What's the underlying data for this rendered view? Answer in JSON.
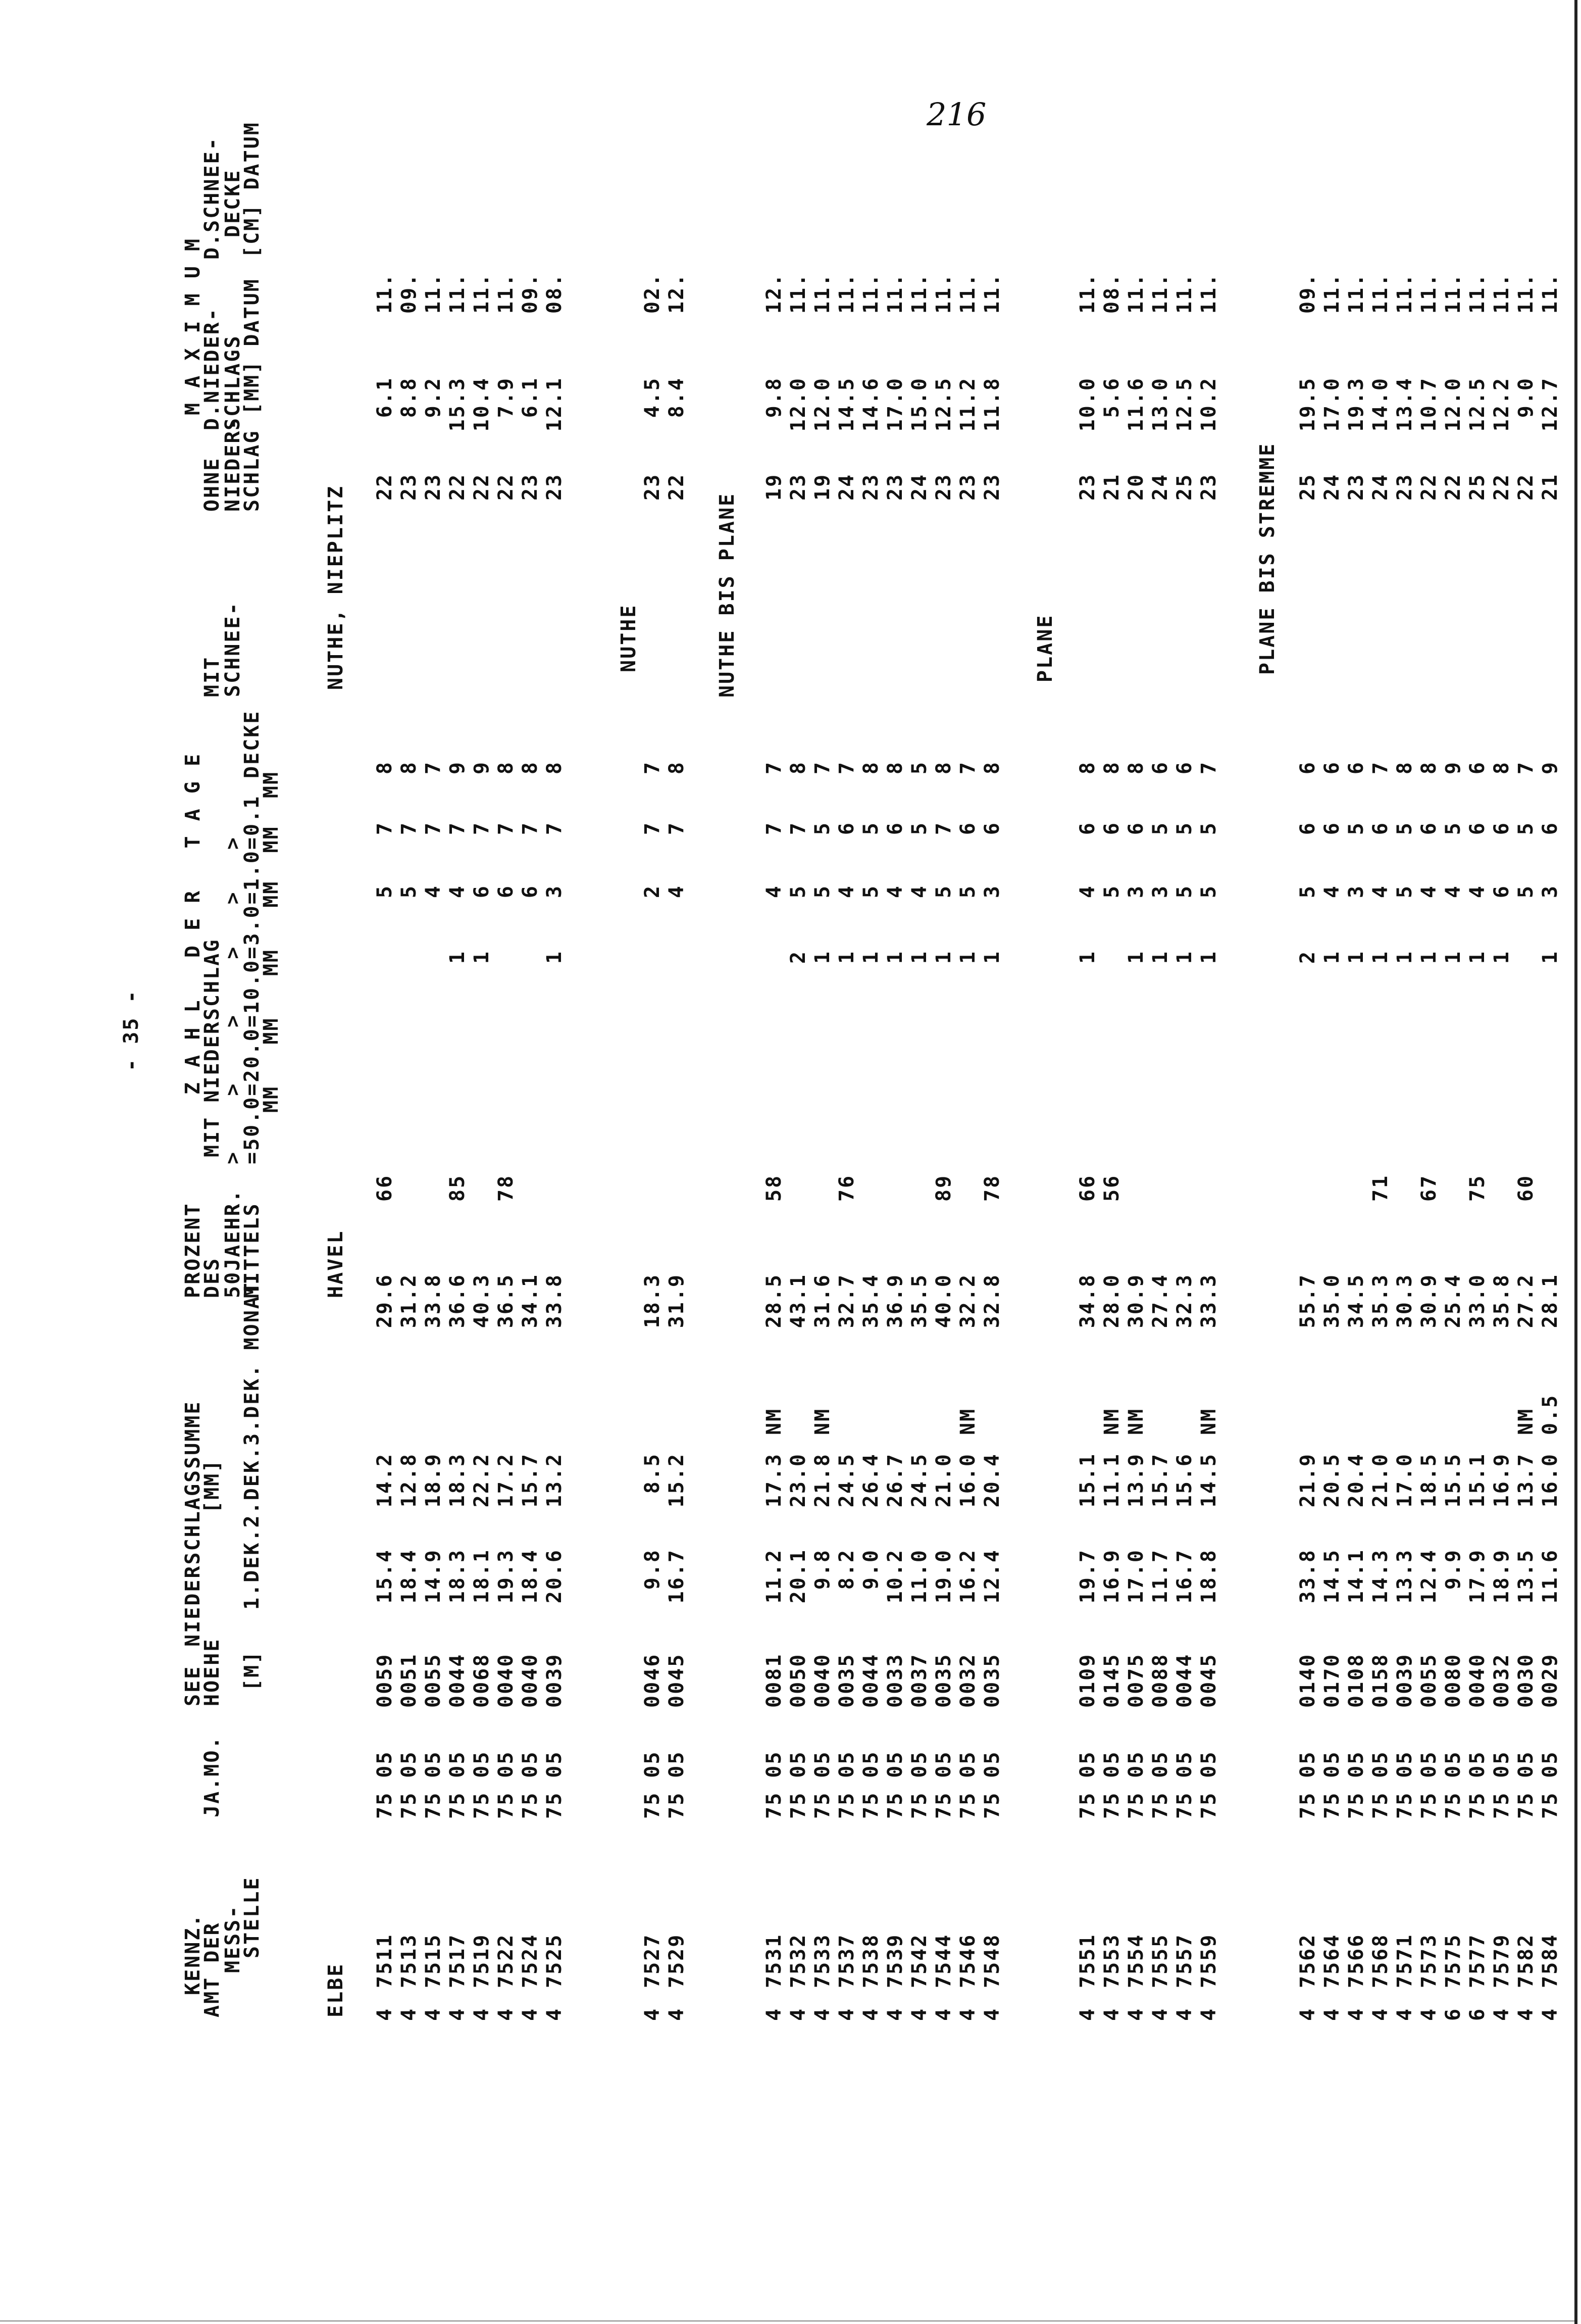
{
  "page_number": "216",
  "page_header": "- 35 -",
  "header": {
    "kennz_1": "KENNZ.",
    "kennz_2": "AMT DER",
    "kennz_3": "MESS-",
    "kennz_4": "STELLE",
    "jamo": "JA.MO.",
    "see_1": "SEE",
    "see_2": "HOEHE",
    "see_3": "[M]",
    "nsum_1": "NIEDERSCHLAGSSUMME",
    "nsum_2": "[MM]",
    "nsum_4": "1.DEK.2.DEK.3.DEK. MONAT",
    "proz_1": "PROZENT",
    "proz_2": "DES",
    "proz_3": "50JAEHR.",
    "proz_4": "MITTELS",
    "tage_1": "Z A H L   D E R   T A G E",
    "tage_2": "MIT NIEDERSCHLAG",
    "tage_3": ">    >    >    >   >   >",
    "tage_4": "=50.0=20.0=10.0=3.0=1.0=0.1",
    "tage_5": "MM   MM   MM   MM  MM  MM",
    "mit_2": "MIT",
    "mit_3": "SCHNEE-",
    "mit_4": "DECKE",
    "ohne_2": "OHNE",
    "ohne_3": "NIEDER-",
    "ohne_4": "SCHLAG",
    "max_1": "M A X I M U M",
    "max_2": "D.NIEDER-",
    "max_3": "SCHLAGS",
    "max_4": "[MM] DATUM",
    "schnee_2": "D.SCHNEE-",
    "schnee_3": "DECKE",
    "schnee_4": "[CM] DATUM"
  },
  "labels": {
    "basin": "ELBE",
    "river": "HAVEL",
    "sub": [
      "NUTHE, NIEPLITZ",
      "NUTHE",
      "NUTHE BIS PLANE",
      "PLANE",
      "PLANE BIS STREMME"
    ]
  },
  "groups": [
    {
      "rows": [
        {
          "amt": "4",
          "kennz": "7511",
          "jamo": "75 05",
          "see": "0059",
          "dek1": "15.4",
          "dek2": "14.2",
          "dek3": "",
          "monat": "29.6",
          "proz": "66",
          "d50": "",
          "d20": "",
          "d10": "",
          "d3": "5",
          "d1": "7",
          "d01": "8",
          "ohne": "22",
          "max": "6.1",
          "datum": "11."
        },
        {
          "amt": "4",
          "kennz": "7513",
          "jamo": "75 05",
          "see": "0051",
          "dek1": "18.4",
          "dek2": "12.8",
          "dek3": "",
          "monat": "31.2",
          "proz": "",
          "d50": "",
          "d20": "",
          "d10": "",
          "d3": "5",
          "d1": "7",
          "d01": "8",
          "ohne": "23",
          "max": "8.8",
          "datum": "09."
        },
        {
          "amt": "4",
          "kennz": "7515",
          "jamo": "75 05",
          "see": "0055",
          "dek1": "14.9",
          "dek2": "18.9",
          "dek3": "",
          "monat": "33.8",
          "proz": "",
          "d50": "",
          "d20": "",
          "d10": "",
          "d3": "4",
          "d1": "7",
          "d01": "7",
          "ohne": "23",
          "max": "9.2",
          "datum": "11."
        },
        {
          "amt": "4",
          "kennz": "7517",
          "jamo": "75 05",
          "see": "0044",
          "dek1": "18.3",
          "dek2": "18.3",
          "dek3": "",
          "monat": "36.6",
          "proz": "85",
          "d50": "",
          "d20": "",
          "d10": "1",
          "d3": "4",
          "d1": "7",
          "d01": "9",
          "ohne": "22",
          "max": "15.3",
          "datum": "11."
        },
        {
          "amt": "4",
          "kennz": "7519",
          "jamo": "75 05",
          "see": "0068",
          "dek1": "18.1",
          "dek2": "22.2",
          "dek3": "",
          "monat": "40.3",
          "proz": "",
          "d50": "",
          "d20": "",
          "d10": "1",
          "d3": "6",
          "d1": "7",
          "d01": "9",
          "ohne": "22",
          "max": "10.4",
          "datum": "11."
        },
        {
          "amt": "4",
          "kennz": "7522",
          "jamo": "75 05",
          "see": "0040",
          "dek1": "19.3",
          "dek2": "17.2",
          "dek3": "",
          "monat": "36.5",
          "proz": "78",
          "d50": "",
          "d20": "",
          "d10": "",
          "d3": "6",
          "d1": "7",
          "d01": "8",
          "ohne": "22",
          "max": "7.9",
          "datum": "11."
        },
        {
          "amt": "4",
          "kennz": "7524",
          "jamo": "75 05",
          "see": "0040",
          "dek1": "18.4",
          "dek2": "15.7",
          "dek3": "",
          "monat": "34.1",
          "proz": "",
          "d50": "",
          "d20": "",
          "d10": "",
          "d3": "6",
          "d1": "7",
          "d01": "8",
          "ohne": "23",
          "max": "6.1",
          "datum": "09."
        },
        {
          "amt": "4",
          "kennz": "7525",
          "jamo": "75 05",
          "see": "0039",
          "dek1": "20.6",
          "dek2": "13.2",
          "dek3": "",
          "monat": "33.8",
          "proz": "",
          "d50": "",
          "d20": "",
          "d10": "1",
          "d3": "3",
          "d1": "7",
          "d01": "8",
          "ohne": "23",
          "max": "12.1",
          "datum": "08."
        }
      ]
    },
    {
      "rows": [
        {
          "amt": "4",
          "kennz": "7527",
          "jamo": "75 05",
          "see": "0046",
          "dek1": "9.8",
          "dek2": "8.5",
          "dek3": "",
          "monat": "18.3",
          "proz": "",
          "d50": "",
          "d20": "",
          "d10": "",
          "d3": "2",
          "d1": "7",
          "d01": "7",
          "ohne": "23",
          "max": "4.5",
          "datum": "02."
        },
        {
          "amt": "4",
          "kennz": "7529",
          "jamo": "75 05",
          "see": "0045",
          "dek1": "16.7",
          "dek2": "15.2",
          "dek3": "",
          "monat": "31.9",
          "proz": "",
          "d50": "",
          "d20": "",
          "d10": "",
          "d3": "4",
          "d1": "7",
          "d01": "8",
          "ohne": "22",
          "max": "8.4",
          "datum": "12."
        }
      ]
    },
    {
      "rows": [
        {
          "amt": "4",
          "kennz": "7531",
          "jamo": "75 05",
          "see": "0081",
          "dek1": "11.2",
          "dek2": "17.3",
          "dek3": "NM",
          "monat": "28.5",
          "proz": "58",
          "d50": "",
          "d20": "",
          "d10": "",
          "d3": "4",
          "d1": "7",
          "d01": "7",
          "ohne": "19",
          "max": "9.8",
          "datum": "12."
        },
        {
          "amt": "4",
          "kennz": "7532",
          "jamo": "75 05",
          "see": "0050",
          "dek1": "20.1",
          "dek2": "23.0",
          "dek3": "",
          "monat": "43.1",
          "proz": "",
          "d50": "",
          "d20": "",
          "d10": "2",
          "d3": "5",
          "d1": "7",
          "d01": "8",
          "ohne": "23",
          "max": "12.0",
          "datum": "11."
        },
        {
          "amt": "4",
          "kennz": "7533",
          "jamo": "75 05",
          "see": "0040",
          "dek1": "9.8",
          "dek2": "21.8",
          "dek3": "NM",
          "monat": "31.6",
          "proz": "",
          "d50": "",
          "d20": "",
          "d10": "1",
          "d3": "5",
          "d1": "5",
          "d01": "7",
          "ohne": "19",
          "max": "12.0",
          "datum": "11."
        },
        {
          "amt": "4",
          "kennz": "7537",
          "jamo": "75 05",
          "see": "0035",
          "dek1": "8.2",
          "dek2": "24.5",
          "dek3": "",
          "monat": "32.7",
          "proz": "76",
          "d50": "",
          "d20": "",
          "d10": "1",
          "d3": "4",
          "d1": "6",
          "d01": "7",
          "ohne": "24",
          "max": "14.5",
          "datum": "11."
        },
        {
          "amt": "4",
          "kennz": "7538",
          "jamo": "75 05",
          "see": "0044",
          "dek1": "9.0",
          "dek2": "26.4",
          "dek3": "",
          "monat": "35.4",
          "proz": "",
          "d50": "",
          "d20": "",
          "d10": "1",
          "d3": "5",
          "d1": "5",
          "d01": "8",
          "ohne": "23",
          "max": "14.6",
          "datum": "11."
        },
        {
          "amt": "4",
          "kennz": "7539",
          "jamo": "75 05",
          "see": "0033",
          "dek1": "10.2",
          "dek2": "26.7",
          "dek3": "",
          "monat": "36.9",
          "proz": "",
          "d50": "",
          "d20": "",
          "d10": "1",
          "d3": "4",
          "d1": "6",
          "d01": "8",
          "ohne": "23",
          "max": "17.0",
          "datum": "11."
        },
        {
          "amt": "4",
          "kennz": "7542",
          "jamo": "75 05",
          "see": "0037",
          "dek1": "11.0",
          "dek2": "24.5",
          "dek3": "",
          "monat": "35.5",
          "proz": "",
          "d50": "",
          "d20": "",
          "d10": "1",
          "d3": "4",
          "d1": "5",
          "d01": "5",
          "ohne": "24",
          "max": "15.0",
          "datum": "11."
        },
        {
          "amt": "4",
          "kennz": "7544",
          "jamo": "75 05",
          "see": "0035",
          "dek1": "19.0",
          "dek2": "21.0",
          "dek3": "",
          "monat": "40.0",
          "proz": "89",
          "d50": "",
          "d20": "",
          "d10": "1",
          "d3": "5",
          "d1": "7",
          "d01": "8",
          "ohne": "23",
          "max": "12.5",
          "datum": "11."
        },
        {
          "amt": "4",
          "kennz": "7546",
          "jamo": "75 05",
          "see": "0032",
          "dek1": "16.2",
          "dek2": "16.0",
          "dek3": "NM",
          "monat": "32.2",
          "proz": "",
          "d50": "",
          "d20": "",
          "d10": "1",
          "d3": "5",
          "d1": "6",
          "d01": "7",
          "ohne": "23",
          "max": "11.2",
          "datum": "11."
        },
        {
          "amt": "4",
          "kennz": "7548",
          "jamo": "75 05",
          "see": "0035",
          "dek1": "12.4",
          "dek2": "20.4",
          "dek3": "",
          "monat": "32.8",
          "proz": "78",
          "d50": "",
          "d20": "",
          "d10": "1",
          "d3": "3",
          "d1": "6",
          "d01": "8",
          "ohne": "23",
          "max": "11.8",
          "datum": "11."
        }
      ]
    },
    {
      "rows": [
        {
          "amt": "4",
          "kennz": "7551",
          "jamo": "75 05",
          "see": "0109",
          "dek1": "19.7",
          "dek2": "15.1",
          "dek3": "",
          "monat": "34.8",
          "proz": "66",
          "d50": "",
          "d20": "",
          "d10": "1",
          "d3": "4",
          "d1": "6",
          "d01": "8",
          "ohne": "23",
          "max": "10.0",
          "datum": "11."
        },
        {
          "amt": "4",
          "kennz": "7553",
          "jamo": "75 05",
          "see": "0145",
          "dek1": "16.9",
          "dek2": "11.1",
          "dek3": "NM",
          "monat": "28.0",
          "proz": "56",
          "d50": "",
          "d20": "",
          "d10": "",
          "d3": "5",
          "d1": "6",
          "d01": "8",
          "ohne": "21",
          "max": "5.6",
          "datum": "08."
        },
        {
          "amt": "4",
          "kennz": "7554",
          "jamo": "75 05",
          "see": "0075",
          "dek1": "17.0",
          "dek2": "13.9",
          "dek3": "NM",
          "monat": "30.9",
          "proz": "",
          "d50": "",
          "d20": "",
          "d10": "1",
          "d3": "3",
          "d1": "6",
          "d01": "8",
          "ohne": "20",
          "max": "11.6",
          "datum": "11."
        },
        {
          "amt": "4",
          "kennz": "7555",
          "jamo": "75 05",
          "see": "0088",
          "dek1": "11.7",
          "dek2": "15.7",
          "dek3": "",
          "monat": "27.4",
          "proz": "",
          "d50": "",
          "d20": "",
          "d10": "1",
          "d3": "3",
          "d1": "5",
          "d01": "6",
          "ohne": "24",
          "max": "13.0",
          "datum": "11."
        },
        {
          "amt": "4",
          "kennz": "7557",
          "jamo": "75 05",
          "see": "0044",
          "dek1": "16.7",
          "dek2": "15.6",
          "dek3": "",
          "monat": "32.3",
          "proz": "",
          "d50": "",
          "d20": "",
          "d10": "1",
          "d3": "5",
          "d1": "5",
          "d01": "6",
          "ohne": "25",
          "max": "12.5",
          "datum": "11."
        },
        {
          "amt": "4",
          "kennz": "7559",
          "jamo": "75 05",
          "see": "0045",
          "dek1": "18.8",
          "dek2": "14.5",
          "dek3": "NM",
          "monat": "33.3",
          "proz": "",
          "d50": "",
          "d20": "",
          "d10": "1",
          "d3": "5",
          "d1": "5",
          "d01": "7",
          "ohne": "23",
          "max": "10.2",
          "datum": "11."
        }
      ]
    },
    {
      "rows": [
        {
          "amt": "4",
          "kennz": "7562",
          "jamo": "75 05",
          "see": "0140",
          "dek1": "33.8",
          "dek2": "21.9",
          "dek3": "",
          "monat": "55.7",
          "proz": "",
          "d50": "",
          "d20": "",
          "d10": "2",
          "d3": "5",
          "d1": "6",
          "d01": "6",
          "ohne": "25",
          "max": "19.5",
          "datum": "09."
        },
        {
          "amt": "4",
          "kennz": "7564",
          "jamo": "75 05",
          "see": "0170",
          "dek1": "14.5",
          "dek2": "20.5",
          "dek3": "",
          "monat": "35.0",
          "proz": "",
          "d50": "",
          "d20": "",
          "d10": "1",
          "d3": "4",
          "d1": "6",
          "d01": "6",
          "ohne": "24",
          "max": "17.0",
          "datum": "11."
        },
        {
          "amt": "4",
          "kennz": "7566",
          "jamo": "75 05",
          "see": "0108",
          "dek1": "14.1",
          "dek2": "20.4",
          "dek3": "",
          "monat": "34.5",
          "proz": "",
          "d50": "",
          "d20": "",
          "d10": "1",
          "d3": "3",
          "d1": "5",
          "d01": "6",
          "ohne": "23",
          "max": "19.3",
          "datum": "11."
        },
        {
          "amt": "4",
          "kennz": "7568",
          "jamo": "75 05",
          "see": "0158",
          "dek1": "14.3",
          "dek2": "21.0",
          "dek3": "",
          "monat": "35.3",
          "proz": "71",
          "d50": "",
          "d20": "",
          "d10": "1",
          "d3": "4",
          "d1": "6",
          "d01": "7",
          "ohne": "24",
          "max": "14.0",
          "datum": "11."
        },
        {
          "amt": "4",
          "kennz": "7571",
          "jamo": "75 05",
          "see": "0039",
          "dek1": "13.3",
          "dek2": "17.0",
          "dek3": "",
          "monat": "30.3",
          "proz": "",
          "d50": "",
          "d20": "",
          "d10": "1",
          "d3": "5",
          "d1": "5",
          "d01": "8",
          "ohne": "23",
          "max": "13.4",
          "datum": "11."
        },
        {
          "amt": "4",
          "kennz": "7573",
          "jamo": "75 05",
          "see": "0055",
          "dek1": "12.4",
          "dek2": "18.5",
          "dek3": "",
          "monat": "30.9",
          "proz": "67",
          "d50": "",
          "d20": "",
          "d10": "1",
          "d3": "4",
          "d1": "6",
          "d01": "8",
          "ohne": "22",
          "max": "10.7",
          "datum": "11."
        },
        {
          "amt": "6",
          "kennz": "7575",
          "jamo": "75 05",
          "see": "0080",
          "dek1": "9.9",
          "dek2": "15.5",
          "dek3": "",
          "monat": "25.4",
          "proz": "",
          "d50": "",
          "d20": "",
          "d10": "1",
          "d3": "4",
          "d1": "5",
          "d01": "9",
          "ohne": "22",
          "max": "12.0",
          "datum": "11."
        },
        {
          "amt": "6",
          "kennz": "7577",
          "jamo": "75 05",
          "see": "0040",
          "dek1": "17.9",
          "dek2": "15.1",
          "dek3": "",
          "monat": "33.0",
          "proz": "75",
          "d50": "",
          "d20": "",
          "d10": "1",
          "d3": "4",
          "d1": "6",
          "d01": "6",
          "ohne": "25",
          "max": "12.5",
          "datum": "11."
        },
        {
          "amt": "4",
          "kennz": "7579",
          "jamo": "75 05",
          "see": "0032",
          "dek1": "18.9",
          "dek2": "16.9",
          "dek3": "",
          "monat": "35.8",
          "proz": "",
          "d50": "",
          "d20": "",
          "d10": "1",
          "d3": "6",
          "d1": "6",
          "d01": "8",
          "ohne": "22",
          "max": "12.2",
          "datum": "11."
        },
        {
          "amt": "4",
          "kennz": "7582",
          "jamo": "75 05",
          "see": "0030",
          "dek1": "13.5",
          "dek2": "13.7",
          "dek3": "NM",
          "monat": "27.2",
          "proz": "60",
          "d50": "",
          "d20": "",
          "d10": "",
          "d3": "5",
          "d1": "5",
          "d01": "7",
          "ohne": "22",
          "max": "9.0",
          "datum": "11."
        },
        {
          "amt": "4",
          "kennz": "7584",
          "jamo": "75 05",
          "see": "0029",
          "dek1": "11.6",
          "dek2": "16.0",
          "dek3": "0.5",
          "monat": "28.1",
          "proz": "",
          "d50": "",
          "d20": "",
          "d10": "1",
          "d3": "3",
          "d1": "6",
          "d01": "9",
          "ohne": "21",
          "max": "12.7",
          "datum": "11."
        }
      ]
    }
  ]
}
